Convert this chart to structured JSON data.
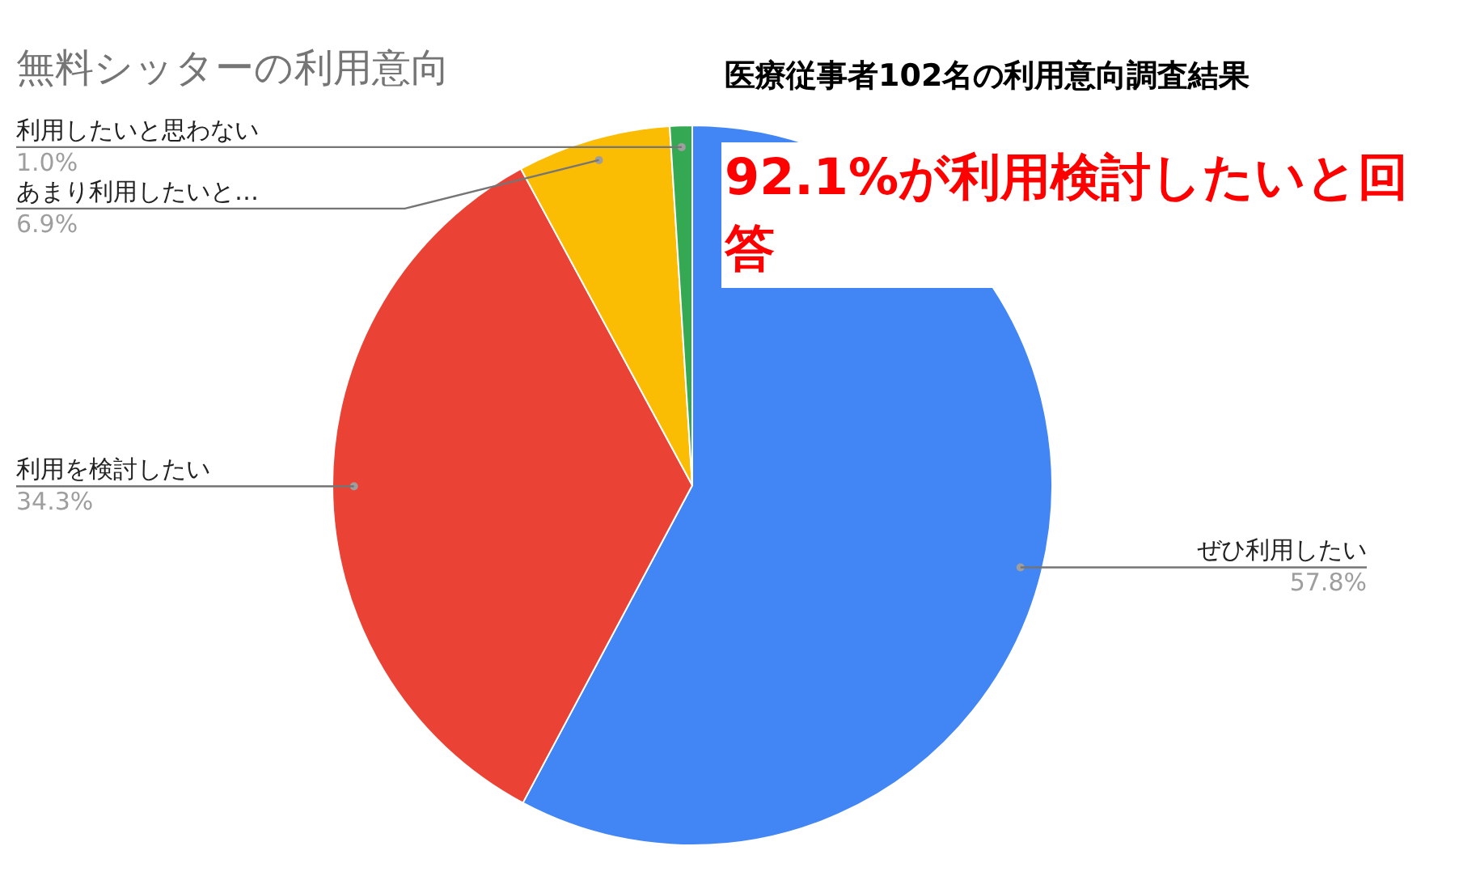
{
  "chart_data": {
    "type": "pie",
    "title": "無料シッターの利用意向",
    "categories": [
      "ぜひ利用したい",
      "利用を検討したい",
      "あまり利用したいと…",
      "利用したいと思わない"
    ],
    "values": [
      57.8,
      34.3,
      6.9,
      1.0
    ],
    "colors": [
      "#4285f4",
      "#ea4335",
      "#fbbc04",
      "#34a853"
    ],
    "value_labels": [
      "57.8%",
      "34.3%",
      "6.9%",
      "1.0%"
    ],
    "legend": false,
    "annotations": [
      "医療従事者102名の利用意向調査結果",
      "92.1%が利用検討したいと回答"
    ]
  }
}
